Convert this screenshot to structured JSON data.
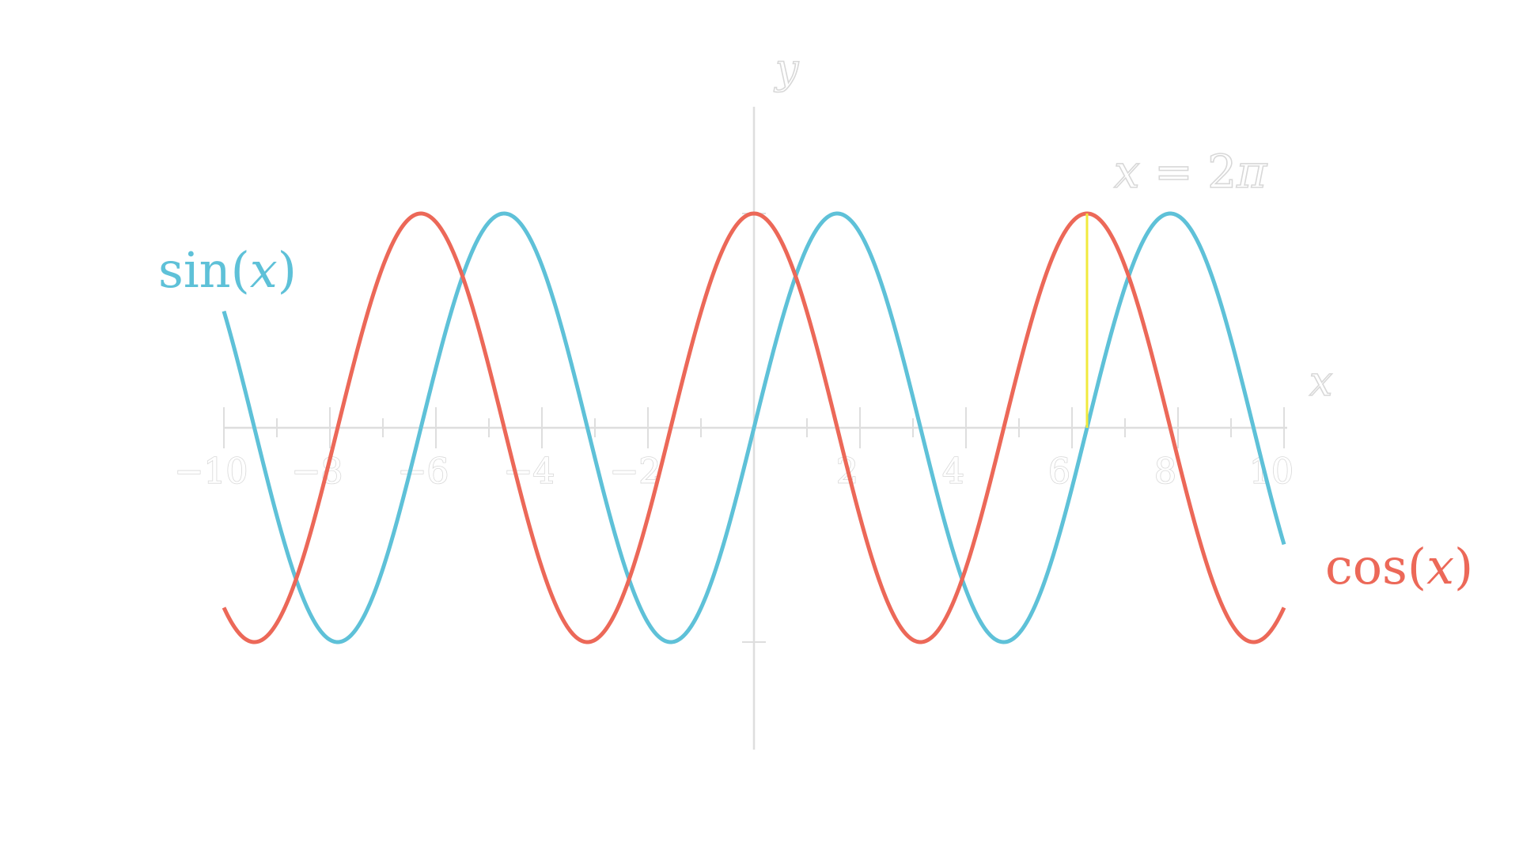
{
  "chart_data": {
    "type": "line",
    "xlim": [
      -10,
      10
    ],
    "ylim": [
      -1.5,
      1.5
    ],
    "x_ticks": [
      -10,
      -8,
      -6,
      -4,
      -2,
      2,
      4,
      6,
      8,
      10
    ],
    "x_tick_labels": [
      "−10",
      "−8",
      "−6",
      "−4",
      "−2",
      "2",
      "4",
      "6",
      "8",
      "10"
    ],
    "x_minor_ticks": [
      -9,
      -7,
      -5,
      -3,
      -1,
      1,
      3,
      5,
      7,
      9
    ],
    "y_ticks": [
      -1,
      1
    ],
    "xlabel": "x",
    "ylabel": "y",
    "grid": false,
    "series": [
      {
        "name": "sin(x)",
        "name_parts": {
          "fn": "sin",
          "open": "(",
          "var": "x",
          "close": ")"
        },
        "function": "sin",
        "color": "#5ec1d8",
        "x_range": [
          -10,
          10
        ],
        "samples_x": [
          -10,
          -6.28,
          -4.71,
          -3.14,
          -1.57,
          0,
          1.57,
          3.14,
          4.71,
          6.28,
          7.85,
          10
        ],
        "samples_y": [
          0.54,
          0,
          1,
          0,
          -1,
          0,
          1,
          0,
          -1,
          0,
          1,
          -0.54
        ]
      },
      {
        "name": "cos(x)",
        "name_parts": {
          "fn": "cos",
          "open": "(",
          "var": "x",
          "close": ")"
        },
        "function": "cos",
        "color": "#ec6858",
        "x_range": [
          -10,
          10
        ],
        "samples_x": [
          -10,
          -9.42,
          -6.28,
          -3.14,
          0,
          3.14,
          6.28,
          9.42,
          10
        ],
        "samples_y": [
          -0.84,
          -1,
          1,
          -1,
          1,
          -1,
          1,
          -1,
          -0.84
        ]
      }
    ],
    "annotations": [
      {
        "type": "vline",
        "x": 6.2832,
        "y_from": 0,
        "y_to": 1,
        "color": "#f1ea3d",
        "label": "x = 2π",
        "label_parts": {
          "var": "x",
          "eq": " = 2",
          "sym": "π"
        }
      }
    ]
  }
}
